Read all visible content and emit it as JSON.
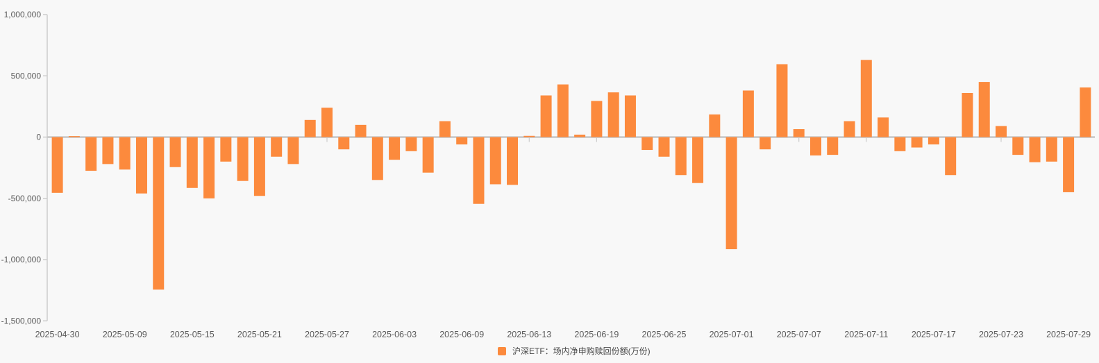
{
  "chart_data": {
    "type": "bar",
    "title": "",
    "series": [
      {
        "name": "沪深ETF：场内净申购赎回份额(万份)",
        "values": [
          -455000,
          8000,
          -275000,
          -220000,
          -265000,
          -460000,
          -1245000,
          -245000,
          -415000,
          -500000,
          -200000,
          -358000,
          -480000,
          -160000,
          -220000,
          140000,
          240000,
          -100000,
          100000,
          -350000,
          -185000,
          -115000,
          -290000,
          130000,
          -60000,
          -545000,
          -385000,
          -390000,
          10000,
          340000,
          430000,
          20000,
          295000,
          365000,
          340000,
          -105000,
          -160000,
          -310000,
          -375000,
          185000,
          -915000,
          380000,
          -100000,
          595000,
          65000,
          -150000,
          -145000,
          130000,
          630000,
          160000,
          -115000,
          -85000,
          -60000,
          -310000,
          360000,
          450000,
          90000,
          -145000,
          -205000,
          -200000,
          -450000,
          405000
        ]
      }
    ],
    "x": [
      "2025-04-30",
      "2025-05-06",
      "2025-05-07",
      "2025-05-08",
      "2025-05-09",
      "2025-05-12",
      "2025-05-13",
      "2025-05-14",
      "2025-05-15",
      "2025-05-16",
      "2025-05-19",
      "2025-05-20",
      "2025-05-21",
      "2025-05-22",
      "2025-05-23",
      "2025-05-26",
      "2025-05-27",
      "2025-05-28",
      "2025-05-29",
      "2025-05-30",
      "2025-06-03",
      "2025-06-04",
      "2025-06-05",
      "2025-06-06",
      "2025-06-09",
      "2025-06-10",
      "2025-06-11",
      "2025-06-12",
      "2025-06-13",
      "2025-06-16",
      "2025-06-17",
      "2025-06-18",
      "2025-06-19",
      "2025-06-20",
      "2025-06-23",
      "2025-06-24",
      "2025-06-25",
      "2025-06-26",
      "2025-06-27",
      "2025-06-30",
      "2025-07-01",
      "2025-07-02",
      "2025-07-03",
      "2025-07-04",
      "2025-07-07",
      "2025-07-08",
      "2025-07-09",
      "2025-07-10",
      "2025-07-11",
      "2025-07-14",
      "2025-07-15",
      "2025-07-16",
      "2025-07-17",
      "2025-07-18",
      "2025-07-21",
      "2025-07-22",
      "2025-07-23",
      "2025-07-24",
      "2025-07-25",
      "2025-07-28",
      "2025-07-29",
      "2025-07-30"
    ],
    "x_tick_labels": [
      "2025-04-30",
      "2025-05-09",
      "2025-05-15",
      "2025-05-21",
      "2025-05-27",
      "2025-06-03",
      "2025-06-09",
      "2025-06-13",
      "2025-06-19",
      "2025-06-25",
      "2025-07-01",
      "2025-07-07",
      "2025-07-11",
      "2025-07-17",
      "2025-07-23",
      "2025-07-29"
    ],
    "x_label_every_n_bars": 4,
    "y_ticks": [
      1000000,
      500000,
      0,
      -500000,
      -1000000,
      -1500000
    ],
    "y_tick_labels": [
      "1,000,000",
      "500,000",
      "0",
      "-500,000",
      "-1,000,000",
      "-1,500,000"
    ],
    "ylim": [
      -1500000,
      1000000
    ],
    "xlabel": "",
    "ylabel": "",
    "grid": "zero-line-only",
    "legend_position": "bottom-center",
    "colors": {
      "bar": "#fc8a3d",
      "axis_line": "#cccccc",
      "tick_label": "#595959",
      "background": "#f8f8f8"
    }
  },
  "legend": {
    "label": "沪深ETF：场内净申购赎回份额(万份)",
    "swatch_color": "#fc8a3d"
  }
}
